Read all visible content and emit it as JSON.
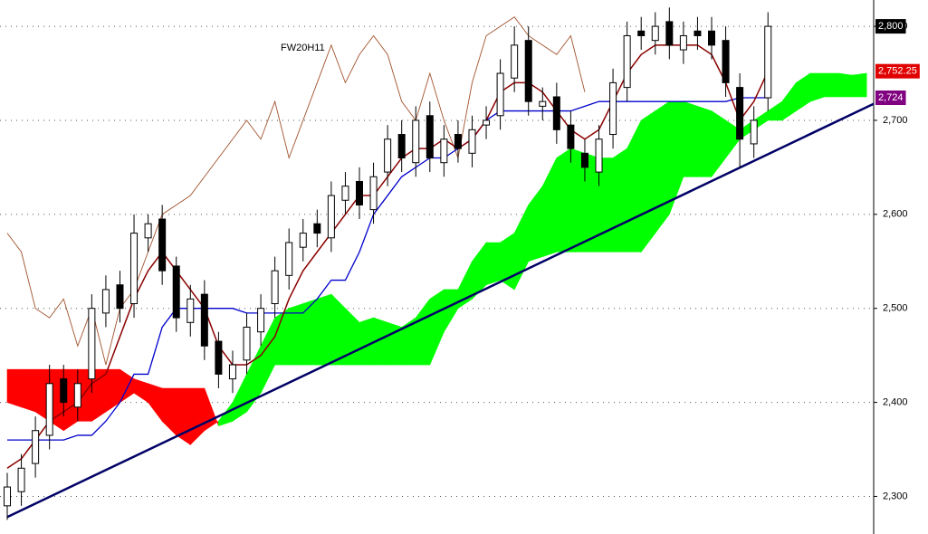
{
  "chart_data": {
    "type": "candlestick",
    "title": "FW20H11",
    "ylim": [
      2260,
      2828
    ],
    "yticks": [
      {
        "value": 2300,
        "label": "2,300"
      },
      {
        "value": 2400,
        "label": "2,400"
      },
      {
        "value": 2500,
        "label": "2,500"
      },
      {
        "value": 2600,
        "label": "2,600"
      },
      {
        "value": 2700,
        "label": "2,700"
      },
      {
        "value": 2800,
        "label": "2,800"
      }
    ],
    "grid": true,
    "open": [
      2290,
      2305,
      2335,
      2365,
      2425,
      2395,
      2425,
      2495,
      2525,
      2505,
      2575,
      2595,
      2545,
      2485,
      2515,
      2465,
      2425,
      2445,
      2475,
      2505,
      2535,
      2565,
      2590,
      2575,
      2615,
      2635,
      2605,
      2645,
      2685,
      2655,
      2705,
      2655,
      2685,
      2665,
      2695,
      2705,
      2745,
      2785,
      2715,
      2725,
      2695,
      2665,
      2645,
      2685,
      2735,
      2795,
      2785,
      2805,
      2775,
      2795,
      2795,
      2785,
      2735,
      2675,
      2724
    ],
    "high": [
      2325,
      2345,
      2385,
      2440,
      2440,
      2435,
      2515,
      2535,
      2540,
      2600,
      2600,
      2610,
      2555,
      2525,
      2530,
      2475,
      2455,
      2495,
      2515,
      2555,
      2585,
      2595,
      2605,
      2635,
      2645,
      2650,
      2655,
      2695,
      2700,
      2715,
      2720,
      2695,
      2700,
      2705,
      2715,
      2765,
      2800,
      2800,
      2735,
      2740,
      2710,
      2680,
      2695,
      2755,
      2805,
      2810,
      2815,
      2820,
      2805,
      2810,
      2810,
      2800,
      2750,
      2715,
      2815
    ],
    "low": [
      2275,
      2290,
      2320,
      2350,
      2385,
      2380,
      2410,
      2480,
      2485,
      2490,
      2560,
      2525,
      2475,
      2470,
      2445,
      2415,
      2410,
      2430,
      2460,
      2490,
      2520,
      2550,
      2565,
      2560,
      2600,
      2595,
      2590,
      2630,
      2645,
      2640,
      2645,
      2640,
      2655,
      2650,
      2680,
      2690,
      2730,
      2705,
      2700,
      2675,
      2655,
      2635,
      2630,
      2670,
      2720,
      2775,
      2770,
      2765,
      2760,
      2775,
      2765,
      2725,
      2650,
      2660,
      2710
    ],
    "close": [
      2310,
      2330,
      2370,
      2420,
      2400,
      2420,
      2500,
      2520,
      2500,
      2580,
      2590,
      2540,
      2490,
      2510,
      2460,
      2430,
      2440,
      2480,
      2500,
      2540,
      2570,
      2580,
      2580,
      2620,
      2630,
      2610,
      2640,
      2680,
      2660,
      2700,
      2660,
      2680,
      2670,
      2690,
      2700,
      2750,
      2780,
      2720,
      2720,
      2690,
      2670,
      2650,
      2680,
      2740,
      2790,
      2790,
      2800,
      2780,
      2790,
      2790,
      2780,
      2740,
      2680,
      2700,
      2800
    ],
    "tenkan": [
      2330,
      2340,
      2360,
      2380,
      2390,
      2400,
      2420,
      2430,
      2470,
      2510,
      2540,
      2560,
      2540,
      2520,
      2500,
      2460,
      2440,
      2440,
      2450,
      2470,
      2510,
      2540,
      2560,
      2580,
      2600,
      2620,
      2620,
      2640,
      2660,
      2670,
      2670,
      2680,
      2670,
      2680,
      2700,
      2730,
      2740,
      2740,
      2730,
      2710,
      2690,
      2680,
      2690,
      2720,
      2750,
      2770,
      2780,
      2780,
      2780,
      2780,
      2770,
      2740,
      2700,
      2720,
      2752.25
    ],
    "kijun": [
      2360,
      2360,
      2360,
      2360,
      2360,
      2365,
      2365,
      2380,
      2400,
      2430,
      2430,
      2480,
      2500,
      2500,
      2500,
      2500,
      2500,
      2495,
      2495,
      2495,
      2495,
      2495,
      2510,
      2530,
      2530,
      2560,
      2600,
      2620,
      2640,
      2650,
      2660,
      2660,
      2670,
      2680,
      2700,
      2710,
      2710,
      2710,
      2710,
      2710,
      2710,
      2715,
      2720,
      2720,
      2720,
      2720,
      2720,
      2720,
      2720,
      2720,
      2720,
      2720,
      2724,
      2724,
      2724
    ],
    "chikou": [
      2580,
      2560,
      2500,
      2490,
      2510,
      2460,
      2500,
      2440,
      2500,
      2520,
      2560,
      2600,
      2610,
      2620,
      2640,
      2660,
      2680,
      2700,
      2680,
      2720,
      2660,
      2700,
      2740,
      2780,
      2740,
      2770,
      2790,
      2770,
      2720,
      2700,
      2750,
      2700,
      2660,
      2740,
      2790,
      2800,
      2810,
      2790,
      2780,
      2770,
      2790,
      2730
    ],
    "span_a": [
      2400,
      2395,
      2390,
      2380,
      2370,
      2380,
      2380,
      2390,
      2400,
      2410,
      2400,
      2380,
      2365,
      2355,
      2370,
      2380,
      2400,
      2430,
      2460,
      2490,
      2500,
      2505,
      2510,
      2515,
      2500,
      2485,
      2490,
      2485,
      2480,
      2490,
      2510,
      2520,
      2520,
      2550,
      2570,
      2570,
      2580,
      2610,
      2630,
      2660,
      2670,
      2665,
      2660,
      2660,
      2670,
      2700,
      2710,
      2720,
      2720,
      2715,
      2710,
      2700,
      2690,
      2700,
      2710,
      2720,
      2740,
      2750,
      2750,
      2750,
      2748,
      2750
    ],
    "span_b": [
      2435,
      2435,
      2435,
      2435,
      2435,
      2435,
      2435,
      2435,
      2435,
      2425,
      2420,
      2415,
      2415,
      2415,
      2415,
      2375,
      2380,
      2390,
      2410,
      2440,
      2440,
      2440,
      2440,
      2440,
      2440,
      2440,
      2440,
      2440,
      2440,
      2440,
      2440,
      2475,
      2500,
      2510,
      2525,
      2530,
      2520,
      2550,
      2555,
      2560,
      2560,
      2560,
      2560,
      2560,
      2560,
      2560,
      2580,
      2600,
      2640,
      2640,
      2640,
      2660,
      2680,
      2690,
      2700,
      2700,
      2710,
      2720,
      2725,
      2725,
      2725,
      2725
    ],
    "trendline": [
      2278,
      2714
    ],
    "price_labels": [
      {
        "value": 2800,
        "label": "2,800",
        "color": "#000000"
      },
      {
        "value": 2752.25,
        "label": "2,752.25",
        "color": "#e00000"
      },
      {
        "value": 2724,
        "label": "2,724",
        "color": "#800080"
      }
    ],
    "colors": {
      "up": "#ffffff",
      "down": "#000000",
      "tenkan": "#8b0000",
      "kijun": "#0000cc",
      "chikou": "#a0522d",
      "bull_cloud": "#00ff00",
      "bear_cloud": "#ff0000",
      "trendline": "#000066"
    }
  }
}
